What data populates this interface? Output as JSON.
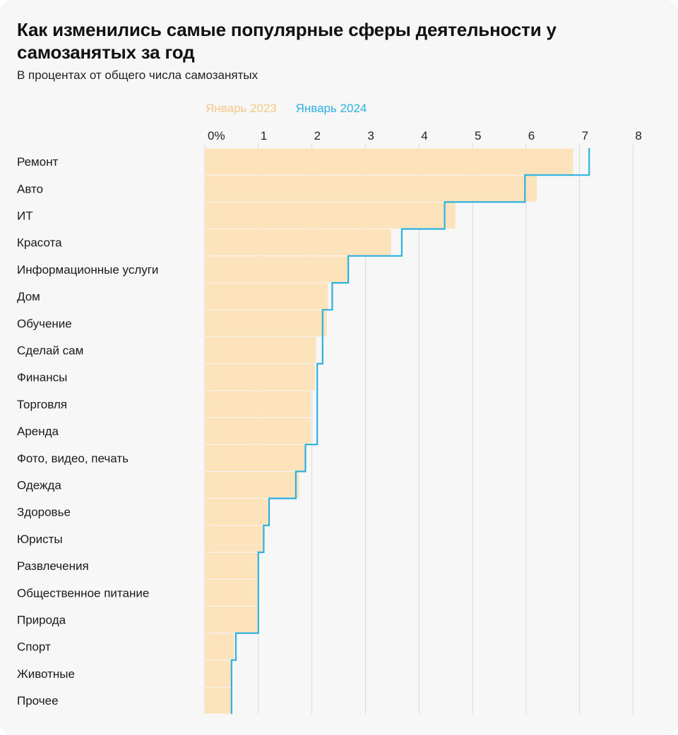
{
  "title": "Как изменились самые популярные сферы деятельности у самозанятых за год",
  "subtitle": "В процентах от общего числа самозанятых",
  "colors": {
    "bar_2023": "#fde3bc",
    "line_2024": "#2cb1e2",
    "legend_2023": "#f5c98a",
    "grid": "#d9d9d9"
  },
  "chart_data": {
    "type": "bar",
    "title": "Как изменились самые популярные сферы деятельности у самозанятых за год",
    "subtitle": "В процентах от общего числа самозанятых",
    "xlabel": "",
    "ylabel": "",
    "xlim": [
      0,
      8
    ],
    "x_ticks": [
      "0%",
      "1",
      "2",
      "3",
      "4",
      "5",
      "6",
      "7",
      "8"
    ],
    "grid": true,
    "legend_position": "top",
    "categories": [
      "Ремонт",
      "Авто",
      "ИТ",
      "Красота",
      "Информационные услуги",
      "Дом",
      "Обучение",
      "Сделай сам",
      "Финансы",
      "Торговля",
      "Аренда",
      "Фото, видео, печать",
      "Одежда",
      "Здоровье",
      "Юристы",
      "Развлечения",
      "Общественное питание",
      "Природа",
      "Спорт",
      "Животные",
      "Прочее"
    ],
    "series": [
      {
        "name": "Январь 2023",
        "style": "bars",
        "values": [
          6.88,
          6.2,
          4.68,
          3.48,
          2.68,
          2.3,
          2.28,
          2.08,
          2.06,
          1.98,
          1.98,
          1.88,
          1.76,
          1.2,
          1.1,
          1.0,
          1.0,
          0.98,
          0.55,
          0.5,
          0.5
        ]
      },
      {
        "name": "Январь 2024",
        "style": "step",
        "values": [
          7.18,
          5.98,
          4.48,
          3.68,
          2.68,
          2.38,
          2.2,
          2.2,
          2.1,
          2.1,
          2.1,
          1.88,
          1.7,
          1.2,
          1.1,
          1.0,
          1.0,
          1.0,
          0.58,
          0.5,
          0.5
        ]
      }
    ]
  }
}
